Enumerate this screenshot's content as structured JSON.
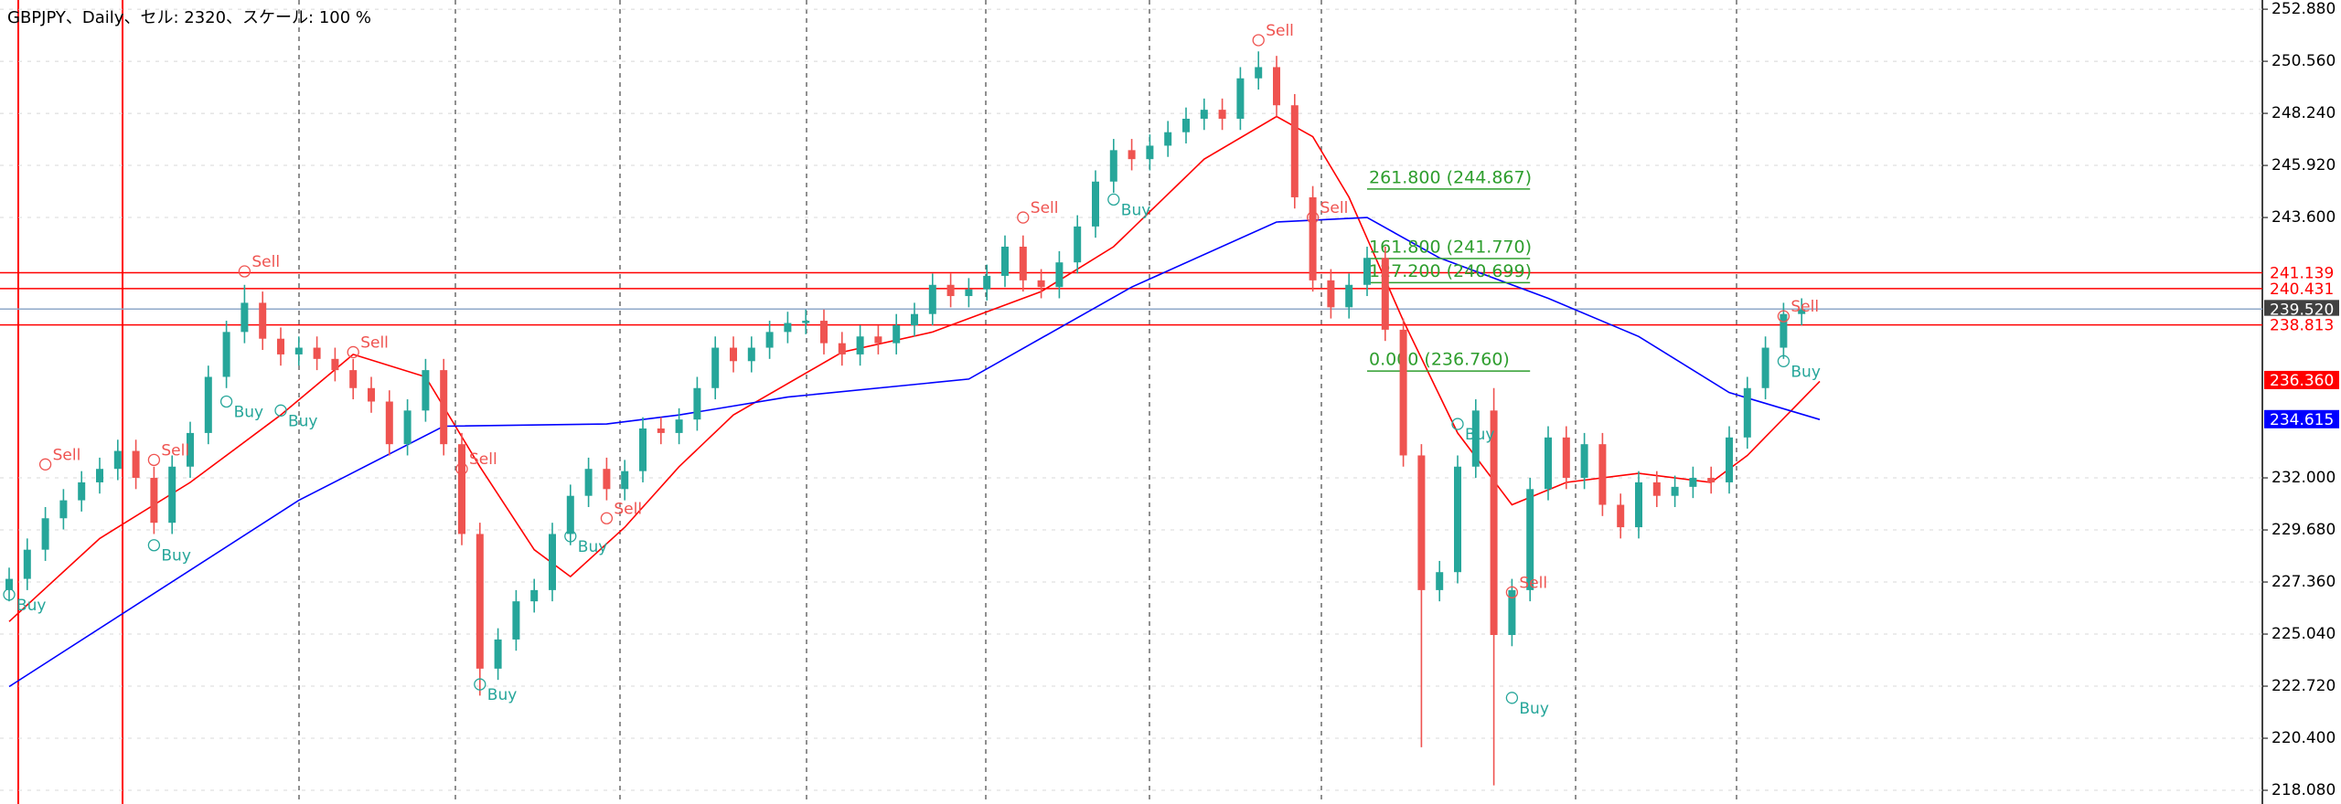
{
  "chart_data": {
    "type": "candlestick",
    "title": "GBPJPY、Daily、セル: 2320、スケール: 100 %",
    "ylim": [
      217.47,
      253.29
    ],
    "yticks": [
      {
        "value": 252.88,
        "label": "252.880"
      },
      {
        "value": 250.56,
        "label": "250.560"
      },
      {
        "value": 248.24,
        "label": "248.240"
      },
      {
        "value": 245.92,
        "label": "245.920"
      },
      {
        "value": 243.6,
        "label": "243.600"
      },
      {
        "value": 232,
        "label": "232.000"
      },
      {
        "value": 229.68,
        "label": "229.680"
      },
      {
        "value": 227.36,
        "label": "227.360"
      },
      {
        "value": 225.04,
        "label": "225.040"
      },
      {
        "value": 222.72,
        "label": "222.720"
      },
      {
        "value": 220.4,
        "label": "220.400"
      },
      {
        "value": 218.08,
        "label": "218.080"
      }
    ],
    "grid": true,
    "up_color": "#26a69a",
    "down_color": "#ef5350",
    "open": [
      227.0,
      227.5,
      228.8,
      230.2,
      231.0,
      231.8,
      232.4,
      233.2,
      232.0,
      230.0,
      232.5,
      234.0,
      236.5,
      238.5,
      239.8,
      238.2,
      237.5,
      237.8,
      237.3,
      236.8,
      236.0,
      235.4,
      233.5,
      235.0,
      236.8,
      233.5,
      229.5,
      223.5,
      224.8,
      226.5,
      227.0,
      229.5,
      231.2,
      232.4,
      231.5,
      232.3,
      234.2,
      234.0,
      234.6,
      236.0,
      237.8,
      237.2,
      237.8,
      238.5,
      238.9,
      239.0,
      238.0,
      237.5,
      238.3,
      238.0,
      238.8,
      239.3,
      240.6,
      240.1,
      240.4,
      241.0,
      242.3,
      240.8,
      240.5,
      241.6,
      243.2,
      245.2,
      246.6,
      246.2,
      246.8,
      247.4,
      248.0,
      248.4,
      248.0,
      249.8,
      250.3,
      248.6,
      244.5,
      240.8,
      239.6,
      240.6,
      241.8,
      238.6,
      233.0,
      227.0,
      227.8,
      232.5,
      235.0,
      225.0,
      227.0,
      231.5,
      233.8,
      232.0,
      233.5,
      230.8,
      229.8,
      231.8,
      231.2,
      231.6,
      232.0,
      231.8,
      233.8,
      236.0,
      237.8,
      239.3
    ],
    "high": [
      228.0,
      229.3,
      230.7,
      231.5,
      232.3,
      232.9,
      233.7,
      233.7,
      232.5,
      233.0,
      234.5,
      237.0,
      239.0,
      240.6,
      240.3,
      238.7,
      238.3,
      238.3,
      237.8,
      237.3,
      236.5,
      235.9,
      235.5,
      237.3,
      237.3,
      234.0,
      230.0,
      225.3,
      227.0,
      227.5,
      230.0,
      231.7,
      232.9,
      232.9,
      232.8,
      234.7,
      234.7,
      235.1,
      236.5,
      238.3,
      238.3,
      238.3,
      239.0,
      239.4,
      239.5,
      239.5,
      238.5,
      238.8,
      238.8,
      239.3,
      239.8,
      241.1,
      241.1,
      240.9,
      241.5,
      242.8,
      242.8,
      241.3,
      242.1,
      243.7,
      245.7,
      247.1,
      247.1,
      247.3,
      247.9,
      248.5,
      248.9,
      248.9,
      250.3,
      251.0,
      250.8,
      249.1,
      245.0,
      241.3,
      241.1,
      242.3,
      242.3,
      239.1,
      233.5,
      228.3,
      233.0,
      235.5,
      236.0,
      227.5,
      232.0,
      234.3,
      234.3,
      234.0,
      234.0,
      231.3,
      232.3,
      232.3,
      232.1,
      232.5,
      232.5,
      234.3,
      236.5,
      238.3,
      239.8,
      240.0
    ],
    "low": [
      226.5,
      227.0,
      228.3,
      229.7,
      230.5,
      231.3,
      231.9,
      231.5,
      229.5,
      229.5,
      232.0,
      233.5,
      236.0,
      238.0,
      237.7,
      237.0,
      237.0,
      236.8,
      236.3,
      235.5,
      234.9,
      233.0,
      233.0,
      234.5,
      233.0,
      229.0,
      222.3,
      223.0,
      224.3,
      226.0,
      226.5,
      229.0,
      230.7,
      231.0,
      231.0,
      231.8,
      233.5,
      233.5,
      234.1,
      235.5,
      236.7,
      236.7,
      237.3,
      238.0,
      238.4,
      237.5,
      237.0,
      237.0,
      237.5,
      237.5,
      238.3,
      238.8,
      239.6,
      239.6,
      239.9,
      240.5,
      240.3,
      240.0,
      240.0,
      241.1,
      242.7,
      244.7,
      245.7,
      245.7,
      246.3,
      246.9,
      247.5,
      247.5,
      247.5,
      249.3,
      248.1,
      244.0,
      240.3,
      239.1,
      239.1,
      240.1,
      238.1,
      232.5,
      220.0,
      226.5,
      227.3,
      232.0,
      218.3,
      224.5,
      226.5,
      231.0,
      231.5,
      231.5,
      230.3,
      229.3,
      229.3,
      230.7,
      230.7,
      231.1,
      231.3,
      231.3,
      233.3,
      235.5,
      237.3,
      238.8
    ],
    "close": [
      227.5,
      228.8,
      230.2,
      231.0,
      231.8,
      232.4,
      233.2,
      232.0,
      230.0,
      232.5,
      234.0,
      236.5,
      238.5,
      239.8,
      238.2,
      237.5,
      237.8,
      237.3,
      236.8,
      236.0,
      235.4,
      233.5,
      235.0,
      236.8,
      233.5,
      229.5,
      223.5,
      224.8,
      226.5,
      227.0,
      229.5,
      231.2,
      232.4,
      231.5,
      232.3,
      234.2,
      234.0,
      234.6,
      236.0,
      237.8,
      237.2,
      237.8,
      238.5,
      238.9,
      239.0,
      238.0,
      237.5,
      238.3,
      238.0,
      238.8,
      239.3,
      240.6,
      240.1,
      240.4,
      241.0,
      242.3,
      240.8,
      240.5,
      241.6,
      243.2,
      245.2,
      246.6,
      246.2,
      246.8,
      247.4,
      248.0,
      248.4,
      248.0,
      249.8,
      250.3,
      248.6,
      244.5,
      240.8,
      239.6,
      240.6,
      241.8,
      238.6,
      233.0,
      227.0,
      227.8,
      232.5,
      235.0,
      225.0,
      227.0,
      231.5,
      233.8,
      232.0,
      233.5,
      230.8,
      229.8,
      231.8,
      231.2,
      231.6,
      232.0,
      231.8,
      233.8,
      236.0,
      237.8,
      239.3,
      239.5
    ],
    "lines": [
      {
        "color": "#ff0000",
        "x": [
          0,
          5,
          10,
          15,
          19,
          23,
          26,
          29,
          31,
          34,
          37,
          40,
          46,
          51,
          57,
          61,
          66,
          70,
          72,
          74,
          77,
          80,
          83,
          86,
          90,
          94,
          96,
          100
        ],
        "values": [
          225.6,
          229.3,
          231.8,
          234.8,
          237.5,
          236.5,
          232.5,
          228.8,
          227.6,
          229.8,
          232.5,
          234.8,
          237.6,
          238.5,
          240.3,
          242.3,
          246.2,
          248.1,
          247.2,
          244.5,
          239.0,
          234.0,
          230.8,
          231.8,
          232.2,
          231.8,
          233.0,
          236.3
        ]
      },
      {
        "color": "#0000ff",
        "x": [
          0,
          16,
          24,
          33,
          37,
          43,
          53,
          62,
          70,
          75,
          79,
          85,
          90,
          95,
          100
        ],
        "values": [
          222.7,
          231.0,
          234.3,
          234.4,
          234.8,
          235.6,
          236.4,
          240.5,
          243.4,
          243.6,
          241.8,
          240.0,
          238.3,
          235.8,
          234.6
        ]
      }
    ],
    "levels": [
      {
        "value": 241.139,
        "label": "241.139",
        "color": "#ff0000",
        "label_bg": "#ffffff",
        "label_color": "#ff0000",
        "line": true
      },
      {
        "value": 240.431,
        "label": "240.431",
        "color": "#ff0000",
        "label_bg": "#ffffff",
        "label_color": "#ff0000",
        "line": true
      },
      {
        "value": 239.52,
        "label": "239.520",
        "color": "#8fa8c8",
        "label_bg": "#404040",
        "label_color": "#ffffff",
        "line": true
      },
      {
        "value": 238.813,
        "label": "238.813",
        "color": "#ff0000",
        "label_bg": "#ffffff",
        "label_color": "#ff0000",
        "line": true
      },
      {
        "value": 236.36,
        "label": "236.360",
        "color": "#ff0000",
        "label_bg": "#ff0000",
        "label_color": "#ffffff",
        "line": false
      },
      {
        "value": 234.615,
        "label": "234.615",
        "color": "#0000ff",
        "label_bg": "#0000ff",
        "label_color": "#ffffff",
        "line": false
      }
    ],
    "fibo": {
      "color": "#2e9e2e",
      "from": 75,
      "to": 84,
      "levels": [
        {
          "value": 244.867,
          "label": "261.800 (244.867)"
        },
        {
          "value": 241.77,
          "label": "161.800 (241.770)"
        },
        {
          "value": 240.699,
          "label": "127.200 (240.699)"
        },
        {
          "value": 236.76,
          "label": "0.000 (236.760)"
        }
      ]
    },
    "signals": [
      {
        "x": 0,
        "price": 226.8,
        "label": "Buy"
      },
      {
        "x": 2,
        "price": 232.6,
        "label": "Sell"
      },
      {
        "x": 8,
        "price": 232.8,
        "label": "Sell"
      },
      {
        "x": 8,
        "price": 229.0,
        "label": "Buy"
      },
      {
        "x": 13,
        "price": 241.2,
        "label": "Sell"
      },
      {
        "x": 12,
        "price": 235.4,
        "label": "Buy"
      },
      {
        "x": 19,
        "price": 237.6,
        "label": "Sell"
      },
      {
        "x": 15,
        "price": 235.0,
        "label": "Buy"
      },
      {
        "x": 25,
        "price": 232.4,
        "label": "Sell"
      },
      {
        "x": 26,
        "price": 222.8,
        "label": "Buy"
      },
      {
        "x": 31,
        "price": 229.4,
        "label": "Buy"
      },
      {
        "x": 33,
        "price": 230.2,
        "label": "Sell"
      },
      {
        "x": 56,
        "price": 243.6,
        "label": "Sell"
      },
      {
        "x": 61,
        "price": 244.4,
        "label": "Buy"
      },
      {
        "x": 69,
        "price": 251.5,
        "label": "Sell"
      },
      {
        "x": 72,
        "price": 243.6,
        "label": "Sell"
      },
      {
        "x": 80,
        "price": 234.4,
        "label": "Buy"
      },
      {
        "x": 83,
        "price": 226.9,
        "label": "Sell"
      },
      {
        "x": 83,
        "price": 222.2,
        "label": "Buy"
      },
      {
        "x": 98,
        "price": 239.2,
        "label": "Sell"
      },
      {
        "x": 98,
        "price": 237.2,
        "label": "Buy"
      }
    ]
  }
}
